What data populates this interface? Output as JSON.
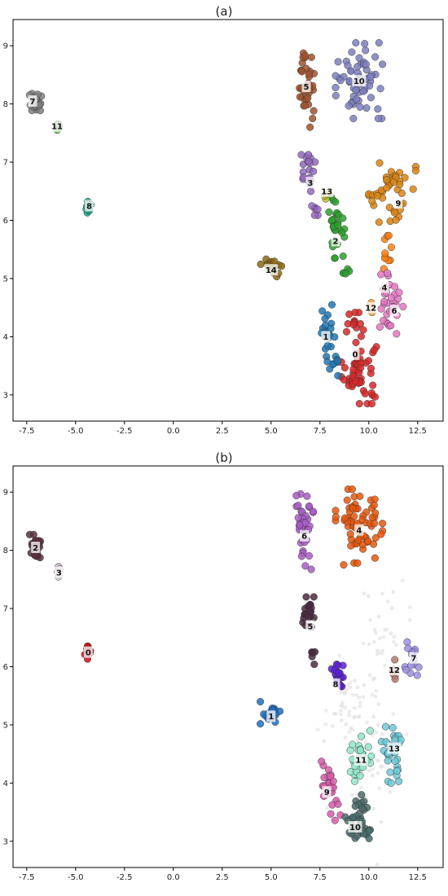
{
  "figure": {
    "panel_titles": [
      "(a)",
      "(b)"
    ]
  },
  "chart_data": [
    {
      "type": "scatter",
      "title": "(a)",
      "xlabel": "",
      "ylabel": "",
      "xlim": [
        -8.2,
        13.8
      ],
      "ylim": [
        2.55,
        9.45
      ],
      "xticks": [
        "-7.5",
        "-5.0",
        "-2.5",
        "0.0",
        "2.5",
        "5.0",
        "7.5",
        "10.0",
        "12.5"
      ],
      "xtick_values": [
        -7.5,
        -5.0,
        -2.5,
        0.0,
        2.5,
        5.0,
        7.5,
        10.0,
        12.5
      ],
      "yticks": [
        "3",
        "4",
        "5",
        "6",
        "7",
        "8",
        "9"
      ],
      "ytick_values": [
        3,
        4,
        5,
        6,
        7,
        8,
        9
      ],
      "grid": false,
      "clusters": [
        {
          "label": "0",
          "color": "#d62728",
          "label_x": 9.3,
          "label_y": 3.7,
          "regions": [
            {
              "cx": 9.5,
              "cy": 3.4,
              "rx": 0.9,
              "ry": 0.55,
              "n": 50
            },
            {
              "cx": 9.3,
              "cy": 4.2,
              "rx": 0.5,
              "ry": 0.3,
              "n": 14
            }
          ]
        },
        {
          "label": "1",
          "color": "#1f77b4",
          "label_x": 7.8,
          "label_y": 4.0,
          "regions": [
            {
              "cx": 7.9,
              "cy": 4.0,
              "rx": 0.35,
              "ry": 0.55,
              "n": 22
            },
            {
              "cx": 8.3,
              "cy": 3.5,
              "rx": 0.3,
              "ry": 0.2,
              "n": 8
            }
          ]
        },
        {
          "label": "2",
          "color": "#2ca02c",
          "label_x": 8.3,
          "label_y": 5.65,
          "regions": [
            {
              "cx": 8.3,
              "cy": 5.9,
              "rx": 0.45,
              "ry": 0.55,
              "n": 30
            },
            {
              "cx": 8.8,
              "cy": 5.1,
              "rx": 0.2,
              "ry": 0.1,
              "n": 5
            }
          ]
        },
        {
          "label": "3",
          "color": "#9467bd",
          "label_x": 7.0,
          "label_y": 6.65,
          "regions": [
            {
              "cx": 6.9,
              "cy": 6.85,
              "rx": 0.35,
              "ry": 0.35,
              "n": 20
            },
            {
              "cx": 7.2,
              "cy": 6.2,
              "rx": 0.2,
              "ry": 0.15,
              "n": 6
            }
          ]
        },
        {
          "label": "4",
          "color": "#ff7f0e",
          "label_x": 10.8,
          "label_y": 4.85,
          "regions": [
            {
              "cx": 10.9,
              "cy": 5.5,
              "rx": 0.3,
              "ry": 0.35,
              "n": 10
            }
          ]
        },
        {
          "label": "5",
          "color": "#a0522d",
          "label_x": 6.8,
          "label_y": 8.3,
          "regions": [
            {
              "cx": 6.8,
              "cy": 8.3,
              "rx": 0.4,
              "ry": 0.7,
              "n": 38
            }
          ]
        },
        {
          "label": "6",
          "color": "#e377c2",
          "label_x": 11.3,
          "label_y": 4.45,
          "regions": [
            {
              "cx": 11.1,
              "cy": 4.6,
              "rx": 0.65,
              "ry": 0.55,
              "n": 34
            }
          ]
        },
        {
          "label": "7",
          "color": "#7f7f7f",
          "label_x": -7.2,
          "label_y": 8.05,
          "regions": [
            {
              "cx": -7.05,
              "cy": 8.05,
              "rx": 0.3,
              "ry": 0.22,
              "n": 26
            }
          ]
        },
        {
          "label": "8",
          "color": "#17a589",
          "label_x": -4.3,
          "label_y": 6.25,
          "regions": [
            {
              "cx": -4.35,
              "cy": 6.25,
              "rx": 0.18,
              "ry": 0.12,
              "n": 12
            }
          ]
        },
        {
          "label": "9",
          "color": "#d98310",
          "label_x": 11.5,
          "label_y": 6.3,
          "regions": [
            {
              "cx": 11.2,
              "cy": 6.5,
              "rx": 1.2,
              "ry": 0.55,
              "n": 44
            }
          ]
        },
        {
          "label": "10",
          "color": "#7b7fbf",
          "label_x": 9.5,
          "label_y": 8.4,
          "regions": [
            {
              "cx": 9.5,
              "cy": 8.4,
              "rx": 1.2,
              "ry": 0.65,
              "n": 62
            }
          ]
        },
        {
          "label": "11",
          "color": "#6ab04c",
          "label_x": -5.95,
          "label_y": 7.62,
          "regions": [
            {
              "cx": -5.9,
              "cy": 7.62,
              "rx": 0.1,
              "ry": 0.1,
              "n": 8
            }
          ]
        },
        {
          "label": "12",
          "color": "#f0a030",
          "label_x": 10.1,
          "label_y": 4.5,
          "regions": [
            {
              "cx": 10.1,
              "cy": 4.5,
              "rx": 0.15,
              "ry": 0.1,
              "n": 3
            }
          ]
        },
        {
          "label": "13",
          "color": "#bcbd22",
          "label_x": 7.85,
          "label_y": 6.5,
          "regions": [
            {
              "cx": 7.8,
              "cy": 6.45,
              "rx": 0.05,
              "ry": 0.08,
              "n": 3
            }
          ]
        },
        {
          "label": "14",
          "color": "#8b6914",
          "label_x": 5.0,
          "label_y": 5.15,
          "regions": [
            {
              "cx": 5.0,
              "cy": 5.2,
              "rx": 0.55,
              "ry": 0.2,
              "n": 22
            }
          ]
        }
      ]
    },
    {
      "type": "scatter",
      "title": "(b)",
      "xlabel": "",
      "ylabel": "",
      "xlim": [
        -8.2,
        13.8
      ],
      "ylim": [
        2.55,
        9.45
      ],
      "xticks": [
        "-7.5",
        "-5.0",
        "-2.5",
        "0.0",
        "2.5",
        "5.0",
        "7.5",
        "10.0",
        "12.5"
      ],
      "xtick_values": [
        -7.5,
        -5.0,
        -2.5,
        0.0,
        2.5,
        5.0,
        7.5,
        10.0,
        12.5
      ],
      "yticks": [
        "3",
        "4",
        "5",
        "6",
        "7",
        "8",
        "9"
      ],
      "ytick_values": [
        3,
        4,
        5,
        6,
        7,
        8,
        9
      ],
      "grid": false,
      "noise_points_color": "#e3e3e3",
      "clusters": [
        {
          "label": "0",
          "color": "#c8101c",
          "label_x": -4.35,
          "label_y": 6.25,
          "regions": [
            {
              "cx": -4.35,
              "cy": 6.25,
              "rx": 0.18,
              "ry": 0.12,
              "n": 12
            }
          ]
        },
        {
          "label": "1",
          "color": "#1f6fc0",
          "label_x": 5.0,
          "label_y": 5.15,
          "regions": [
            {
              "cx": 5.0,
              "cy": 5.2,
              "rx": 0.55,
              "ry": 0.2,
              "n": 22
            }
          ]
        },
        {
          "label": "2",
          "color": "#5a2e3e",
          "label_x": -7.05,
          "label_y": 8.05,
          "regions": [
            {
              "cx": -7.05,
              "cy": 8.05,
              "rx": 0.3,
              "ry": 0.22,
              "n": 26
            }
          ]
        },
        {
          "label": "3",
          "color": "#d8c8d8",
          "label_x": -5.85,
          "label_y": 7.62,
          "regions": [
            {
              "cx": -5.9,
              "cy": 7.62,
              "rx": 0.1,
              "ry": 0.1,
              "n": 8
            }
          ]
        },
        {
          "label": "4",
          "color": "#e8560a",
          "label_x": 9.5,
          "label_y": 8.35,
          "regions": [
            {
              "cx": 9.5,
              "cy": 8.4,
              "rx": 1.2,
              "ry": 0.65,
              "n": 66
            }
          ]
        },
        {
          "label": "5",
          "color": "#4a2a40",
          "label_x": 7.0,
          "label_y": 6.7,
          "regions": [
            {
              "cx": 6.9,
              "cy": 6.85,
              "rx": 0.3,
              "ry": 0.35,
              "n": 20
            },
            {
              "cx": 7.2,
              "cy": 6.15,
              "rx": 0.15,
              "ry": 0.15,
              "n": 5
            }
          ]
        },
        {
          "label": "6",
          "color": "#a85cc4",
          "label_x": 6.7,
          "label_y": 8.25,
          "regions": [
            {
              "cx": 6.7,
              "cy": 8.3,
              "rx": 0.45,
              "ry": 0.7,
              "n": 40
            }
          ]
        },
        {
          "label": "7",
          "color": "#9b8fe0",
          "label_x": 12.3,
          "label_y": 6.15,
          "regions": [
            {
              "cx": 12.2,
              "cy": 6.2,
              "rx": 0.35,
              "ry": 0.4,
              "n": 16
            }
          ]
        },
        {
          "label": "8",
          "color": "#5b1fd1",
          "label_x": 8.3,
          "label_y": 5.7,
          "regions": [
            {
              "cx": 8.4,
              "cy": 5.75,
              "rx": 0.3,
              "ry": 0.3,
              "n": 18
            }
          ]
        },
        {
          "label": "9",
          "color": "#d65aa8",
          "label_x": 7.85,
          "label_y": 3.85,
          "regions": [
            {
              "cx": 7.9,
              "cy": 4.0,
              "rx": 0.35,
              "ry": 0.4,
              "n": 20
            },
            {
              "cx": 8.3,
              "cy": 3.5,
              "rx": 0.25,
              "ry": 0.2,
              "n": 6
            }
          ]
        },
        {
          "label": "10",
          "color": "#4a6b6b",
          "label_x": 9.3,
          "label_y": 3.25,
          "regions": [
            {
              "cx": 9.5,
              "cy": 3.35,
              "rx": 0.7,
              "ry": 0.45,
              "n": 40
            }
          ]
        },
        {
          "label": "11",
          "color": "#8ee6c8",
          "label_x": 9.6,
          "label_y": 4.4,
          "regions": [
            {
              "cx": 9.6,
              "cy": 4.4,
              "rx": 0.6,
              "ry": 0.5,
              "n": 28
            }
          ]
        },
        {
          "label": "12",
          "color": "#b07a6a",
          "label_x": 11.3,
          "label_y": 5.95,
          "regions": [
            {
              "cx": 11.3,
              "cy": 6.0,
              "rx": 0.15,
              "ry": 0.25,
              "n": 7
            }
          ]
        },
        {
          "label": "13",
          "color": "#6ec8d8",
          "label_x": 11.3,
          "label_y": 4.6,
          "regions": [
            {
              "cx": 11.2,
              "cy": 4.6,
              "rx": 0.55,
              "ry": 0.6,
              "n": 34
            }
          ]
        }
      ]
    }
  ]
}
